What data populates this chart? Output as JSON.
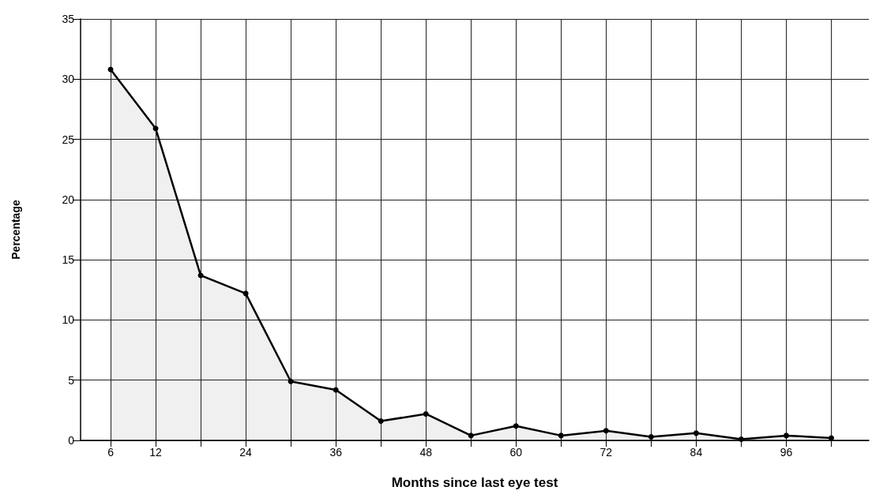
{
  "chart_data": {
    "type": "area",
    "xlabel": "Months since last eye test",
    "ylabel": "Percentage",
    "x": [
      6,
      12,
      18,
      24,
      30,
      36,
      42,
      48,
      54,
      60,
      66,
      72,
      78,
      84,
      90,
      96,
      102
    ],
    "series": [
      {
        "color": "#000000",
        "values": [
          30.8,
          25.9,
          13.7,
          12.2,
          4.9,
          4.2,
          1.6,
          2.2,
          0.4,
          1.2,
          0.4,
          0.8,
          0.3,
          0.6,
          0.1,
          0.4,
          0.2
        ]
      }
    ],
    "xlim": [
      2,
      107
    ],
    "xticks": [
      6,
      12,
      {
        "value": 18,
        "label": null
      },
      24,
      {
        "value": 30,
        "label": null
      },
      36,
      {
        "value": 42,
        "label": null
      },
      48,
      {
        "value": 54,
        "label": null
      },
      60,
      {
        "value": 66,
        "label": null
      },
      72,
      {
        "value": 78,
        "label": null
      },
      84,
      {
        "value": 90,
        "label": null
      },
      96,
      {
        "value": 102,
        "label": null
      }
    ],
    "ylim": [
      0,
      35
    ],
    "yticks": [
      0,
      5,
      10,
      15,
      20,
      25,
      30,
      35
    ],
    "grid": true,
    "marker": "circle",
    "line_style": "solid"
  }
}
